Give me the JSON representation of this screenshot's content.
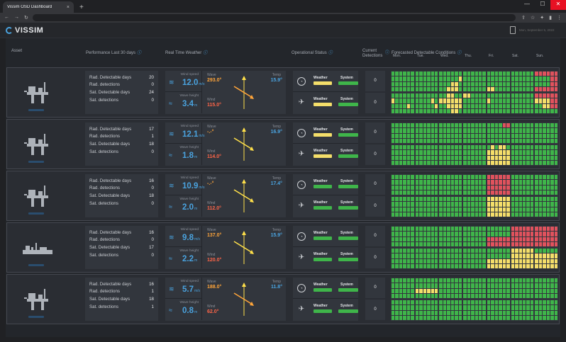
{
  "browser": {
    "tab_title": "Vissim OSD Dashboard",
    "new_tab": "+",
    "close_tab": "×"
  },
  "app": {
    "brand": "VISSIM",
    "datetime": "Mon, September 5, 2022"
  },
  "headers": {
    "asset": "Asset",
    "performance": "Performance Last 30 days",
    "weather": "Real Time Weather",
    "ops": "Operational Status",
    "current_det_1": "Current",
    "current_det_2": "Detections",
    "forecast": "Forecasted Detectable Conditions",
    "days": [
      "Mon.",
      "Tue.",
      "Wed.",
      "Thu.",
      "Fri.",
      "Sat.",
      "Sun."
    ]
  },
  "labels": {
    "rad_days": "Rad. Detectable days",
    "rad_det": "Rad. detections",
    "sat_days": "Sat. Detectable days",
    "sat_det": "Sat. detections",
    "wind_speed": "Wind speed",
    "wave_height": "Wave height",
    "wave": "Wave",
    "wind": "Wind",
    "temp": "Temp",
    "weather": "Weather",
    "system": "System",
    "ms": "m/s",
    "m": "m"
  },
  "colors": {
    "green": "#3fb54a",
    "yellow": "#f4de6a",
    "red": "#e0525d",
    "accent": "#4aa3df"
  },
  "assets": [
    {
      "type": "platform",
      "perf": {
        "rad_days": "20",
        "rad_det": "0",
        "sat_days": "24",
        "sat_det": "0"
      },
      "wind_speed": "12.0",
      "wave_height": "3.4",
      "wave": "293.0°",
      "wind": "115.0°",
      "temp": "15.9°",
      "wave_arrow": "orange",
      "ops": [
        {
          "weather": "yellow",
          "system": "green"
        },
        {
          "weather": "yellow",
          "system": "green"
        }
      ],
      "current": [
        "0",
        "0"
      ]
    },
    {
      "type": "platform",
      "perf": {
        "rad_days": "17",
        "rad_det": "1",
        "sat_days": "18",
        "sat_det": "0"
      },
      "wind_speed": "12.1",
      "wave_height": "1.8",
      "wave": "-.-°",
      "wind": "114.0°",
      "temp": "16.9°",
      "wave_arrow": "yellow",
      "ops": [
        {
          "weather": "yellow",
          "system": "green"
        },
        {
          "weather": "yellow",
          "system": "green"
        }
      ],
      "current": [
        "0",
        "0"
      ]
    },
    {
      "type": "platform",
      "perf": {
        "rad_days": "16",
        "rad_det": "0",
        "sat_days": "18",
        "sat_det": "0"
      },
      "wind_speed": "10.9",
      "wave_height": "2.0",
      "wave": "-.-°",
      "wind": "112.0°",
      "temp": "17.4°",
      "wave_arrow": "yellow",
      "ops": [
        {
          "weather": "green",
          "system": "green"
        },
        {
          "weather": "green",
          "system": "green"
        }
      ],
      "current": [
        "0",
        "0"
      ]
    },
    {
      "type": "vessel",
      "perf": {
        "rad_days": "16",
        "rad_det": "0",
        "sat_days": "17",
        "sat_det": "0"
      },
      "wind_speed": "9.8",
      "wave_height": "2.2",
      "wave": "137.0°",
      "wind": "120.0°",
      "temp": "15.9°",
      "wave_arrow": "yellow",
      "ops": [
        {
          "weather": "green",
          "system": "green"
        },
        {
          "weather": "green",
          "system": "green"
        }
      ],
      "current": [
        "0",
        "0"
      ]
    },
    {
      "type": "platform",
      "perf": {
        "rad_days": "16",
        "rad_det": "1",
        "sat_days": "18",
        "sat_det": "1"
      },
      "wind_speed": "5.7",
      "wave_height": "0.8",
      "wave": "188.0°",
      "wind": "62.0°",
      "temp": "11.8°",
      "wave_arrow": "orange",
      "ops": [
        {
          "weather": "green",
          "system": "green"
        },
        {
          "weather": "green",
          "system": "green"
        }
      ],
      "current": [
        "0",
        "0"
      ]
    }
  ],
  "forecast_pattern": [
    [
      "GGGGGGGGGGGGGGGGGGGGGGGG",
      "GGGGGGGGGGGGGGGGGGGGGGGG",
      "GGGGGGGGGGGYGGGYYGGGYYYG",
      "GGGGGGGGGGGGGGGGGGGGGGGG",
      "GGGGGGGGGGGGGGGGGGYYGGGG",
      "GGGGGGGGGGGGGGGGGGGGGGGG",
      "RRRRRRGGGGRRGGGGRRRRRRRR",
      "GGGGGGYGGGGGGGGGYGGGGGGG",
      "GGGGGGGGGGYGGGGGGYGGGGGG",
      "GGYYGGYYYYYYGGYYYYGGGYYG",
      "YYGGGGGGGGGGGGGGGGGGGGGG",
      "GGGGGGYGGGGGGGGGGGGGGGGG",
      "GGGGGGGGGGGGGGGGGGGGGGGG",
      "RRRRRRYYYYRRGGYYRRGGGGGG"
    ],
    [
      "GGGGGGGGGGGGGGGGGGGGGGGG",
      "GGGGGGGGGGGGGGGGGGGGGGGG",
      "GGGGGGGGGGGGGGGGGGGGGGGG",
      "GGGGGGGGGGGGGGGGGGGGGGGG",
      "GGGGRRGGGGGGGGGGGGGGGGGG",
      "GGGGGGGGGGGGGGGGGGGGGGGG",
      "GGGGGGGGGGGGGGGGGGGGGGGG",
      "GGGGGGGGGGGGGGGGGGGGGGGG",
      "GGGGGGGGGGGGGGGGGGGGGGGG",
      "GGGGGGGGGGGGGGGGGGGGGGGG",
      "GGGGGGGGGGGGGGGGGGGGGGGG",
      "GYGYYGYYYYYYYYYYYYYYYYYY",
      "GGGGGGGGGGGGGGGGGGGGGGGG",
      "GGGGGGGGGGGGGGGGGGGGGGGG"
    ],
    [
      "GGGGGGGGGGGGGGGGGGGGGGGG",
      "GGGGGGGGGGGGGGGGGGGGGGGG",
      "GGGGGGGGGGGGGGGGGGGGGGGG",
      "GGGGGGGGGGGGGGGGGGGGGGGG",
      "RRRRRRRRRRRRRRRRRRRRRRRR",
      "GGGGGGGGGGGGGGGGGGGGGGGG",
      "GGGGGGGGGGGGGGGGGGGGGGGG",
      "GGGGGGGGGGGGGGGGGGGGGGGG",
      "GGGGGGGGGGGGGGGGGGGGGGGG",
      "GGGGGGGGGGGGGGGGGGGGGGGG",
      "GGGGGGGGGGGGGGGGGGGGGGGG",
      "YYYYYYYYYYYYYYYYYYYYYYYY",
      "GGGGGGGGGGGGGGGGGGGGGGGG",
      "GGGGGGGGGGGGGGGGGGGGGGGG"
    ],
    [
      "GGGGGGGGGGGGGGGGGGGGGGGG",
      "GGGGGGGGGGGGGGGGGGGGGGGG",
      "GGGGGGGGGGGGGGGGGGGGGGGG",
      "GGGGGGGGGGGGGGGGGGGGGGGG",
      "GGGGGGGGGGGGRRRRRRRRRRRR",
      "RRRRRRRRRRRRRRRRRRRRRRRR",
      "RRRRRRRRRRRRRRRRRRRRRRRR",
      "GGGGGGGGGGGGGGGGGGGGGGGG",
      "GGGGGGGGGGGGGGGGGGGGGGGG",
      "GGGGGGGGGGGGGGGGGGGGGGGG",
      "GGGGGGGGGGGGGGGGGGGGGGGG",
      "GGGGGGGGGGGGYYYYYYYYYYYY",
      "YYYYYYYYYYYYYYYYYYYYYYYY",
      "GGGGGGYYYYYYYYYYYYYYYYYY"
    ],
    [
      "GGGGGGGGGGGGGGGGGGGGGGGG",
      "GGGGGGGGGGGGYYYYYYGGGGGG",
      "GGGGGGGGGGGGGGGGGGGGGGGG",
      "GGGGGGGGGGGGGGGGGGGGGGGG",
      "GGGGGGGGGGGGGGGGGGGGGGGG",
      "GGGGGGGGGGGGGGGGGGGGGGGG",
      "GGGGGGGGGGGGGGGGGGGGGGGG",
      "GGGGGGGGGGGGGGGGGGGGGGGG",
      "GGGGGGGGGGGGGGGGGGGGGGGG",
      "GGGGGGGGGGGGGGGGGGGGGGGG",
      "GGGGGGGGGGGGGGGGGGGGGGGG",
      "GGGGGGGGGGGGGGGGGGGGGGGG",
      "GGGGGGGGGGGGGGGGGGGGGGGG",
      "GGGGGGGGGGGGGGGGGGGGGGGG"
    ]
  ]
}
